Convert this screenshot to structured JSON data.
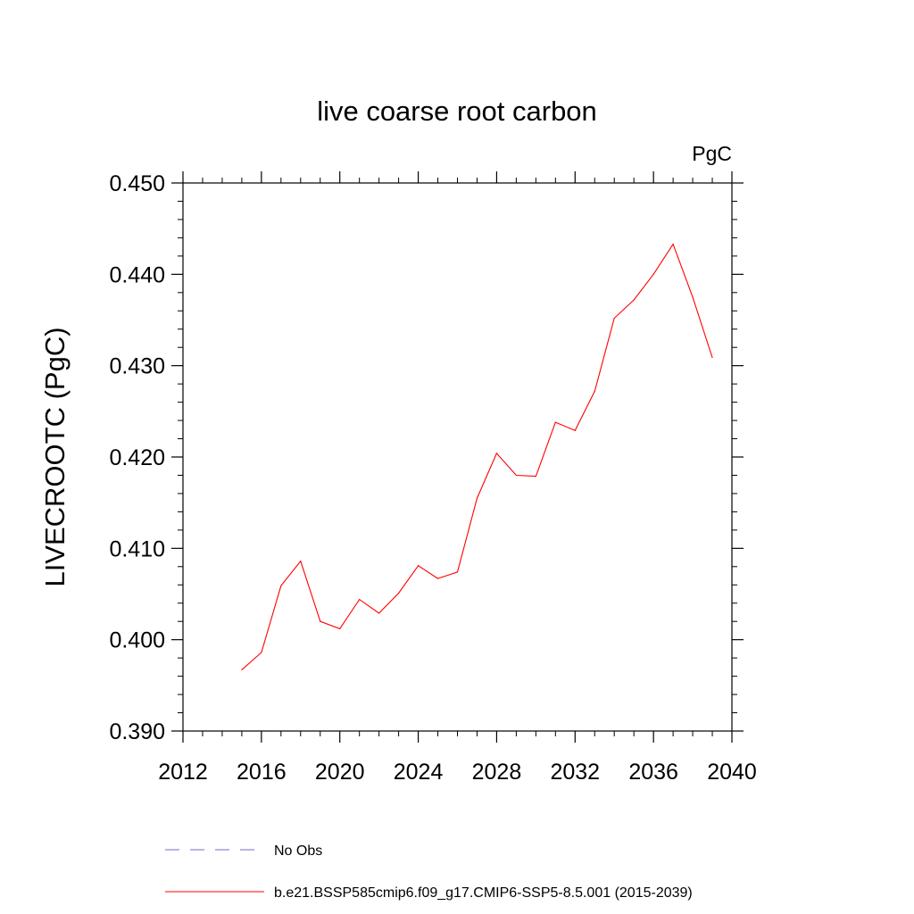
{
  "chart_data": {
    "type": "line",
    "title": "live coarse root carbon",
    "units_label": "PgC",
    "ylabel": "LIVECROOTC  (PgC)",
    "xlabel": "",
    "xlim": [
      2012,
      2040
    ],
    "ylim": [
      0.39,
      0.45
    ],
    "x_ticks": [
      2012,
      2016,
      2020,
      2024,
      2028,
      2032,
      2036,
      2040
    ],
    "y_ticks": [
      0.39,
      0.4,
      0.41,
      0.42,
      0.43,
      0.44,
      0.45
    ],
    "y_tick_labels": [
      "0.390",
      "0.400",
      "0.410",
      "0.420",
      "0.430",
      "0.440",
      "0.450"
    ],
    "x_minor_step": 1,
    "y_minor_step": 0.002,
    "grid": false,
    "series": [
      {
        "name": "b.e21.BSSP585cmip6.f09_g17.CMIP6-SSP5-8.5.001 (2015-2039)",
        "color": "#ff0000",
        "style": "solid",
        "x": [
          2015,
          2016,
          2017,
          2018,
          2019,
          2020,
          2021,
          2022,
          2023,
          2024,
          2025,
          2026,
          2027,
          2028,
          2029,
          2030,
          2031,
          2032,
          2033,
          2034,
          2035,
          2036,
          2037,
          2038,
          2039
        ],
        "values": [
          0.3967,
          0.3986,
          0.4059,
          0.4086,
          0.402,
          0.4012,
          0.4044,
          0.4029,
          0.4051,
          0.4081,
          0.4067,
          0.4074,
          0.4155,
          0.4204,
          0.418,
          0.4179,
          0.4238,
          0.4229,
          0.4272,
          0.4352,
          0.4372,
          0.44,
          0.4433,
          0.4375,
          0.4309
        ]
      }
    ],
    "legend": {
      "position": "bottom",
      "entries": [
        {
          "label": "No Obs",
          "color": "#7b68c8",
          "style": "dashed"
        },
        {
          "label": "b.e21.BSSP585cmip6.f09_g17.CMIP6-SSP5-8.5.001 (2015-2039)",
          "color": "#ff0000",
          "style": "solid"
        }
      ]
    }
  }
}
